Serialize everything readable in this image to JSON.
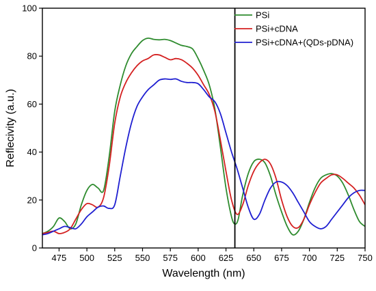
{
  "chart_data": {
    "type": "line",
    "title": "",
    "xlabel": "Wavelength (nm)",
    "ylabel": "Reflecivity (a.u.)",
    "xlim": [
      460,
      750
    ],
    "ylim": [
      0,
      100
    ],
    "x_ticks": [
      475,
      500,
      525,
      550,
      575,
      600,
      625,
      650,
      675,
      700,
      725,
      750
    ],
    "y_ticks": [
      0,
      20,
      40,
      60,
      80,
      100
    ],
    "grid": false,
    "legend_position": "top-right",
    "vertical_marker_x": 633,
    "series": [
      {
        "name": "PSi",
        "color": "#2e8b2e",
        "points": [
          [
            460,
            6
          ],
          [
            465,
            7
          ],
          [
            470,
            9
          ],
          [
            475,
            12.5
          ],
          [
            480,
            11
          ],
          [
            485,
            8
          ],
          [
            490,
            10
          ],
          [
            495,
            18
          ],
          [
            500,
            24
          ],
          [
            505,
            26.5
          ],
          [
            510,
            25
          ],
          [
            515,
            24
          ],
          [
            520,
            38
          ],
          [
            525,
            57
          ],
          [
            530,
            68
          ],
          [
            535,
            76
          ],
          [
            540,
            81
          ],
          [
            545,
            84
          ],
          [
            550,
            86.5
          ],
          [
            555,
            87.5
          ],
          [
            560,
            87
          ],
          [
            565,
            86.8
          ],
          [
            570,
            87
          ],
          [
            575,
            86.5
          ],
          [
            580,
            85.5
          ],
          [
            585,
            84.5
          ],
          [
            590,
            84
          ],
          [
            595,
            83
          ],
          [
            600,
            79
          ],
          [
            605,
            74
          ],
          [
            610,
            68
          ],
          [
            615,
            58
          ],
          [
            620,
            42
          ],
          [
            625,
            25
          ],
          [
            630,
            13
          ],
          [
            633,
            10
          ],
          [
            636,
            12
          ],
          [
            640,
            22
          ],
          [
            645,
            31
          ],
          [
            650,
            36
          ],
          [
            655,
            37
          ],
          [
            660,
            35.5
          ],
          [
            665,
            30
          ],
          [
            670,
            22
          ],
          [
            675,
            15
          ],
          [
            680,
            9
          ],
          [
            685,
            5.5
          ],
          [
            690,
            7
          ],
          [
            695,
            12
          ],
          [
            700,
            19
          ],
          [
            705,
            25
          ],
          [
            710,
            29
          ],
          [
            715,
            30.5
          ],
          [
            720,
            31
          ],
          [
            725,
            30
          ],
          [
            730,
            27
          ],
          [
            735,
            22
          ],
          [
            740,
            16
          ],
          [
            745,
            11
          ],
          [
            750,
            9
          ]
        ]
      },
      {
        "name": "PSi+cDNA",
        "color": "#d42020",
        "points": [
          [
            460,
            6
          ],
          [
            465,
            6.5
          ],
          [
            470,
            7
          ],
          [
            475,
            6
          ],
          [
            480,
            6.5
          ],
          [
            485,
            8
          ],
          [
            490,
            12
          ],
          [
            495,
            16
          ],
          [
            500,
            18.5
          ],
          [
            505,
            18
          ],
          [
            510,
            17
          ],
          [
            515,
            21
          ],
          [
            520,
            34
          ],
          [
            525,
            52
          ],
          [
            530,
            63
          ],
          [
            535,
            69
          ],
          [
            540,
            73
          ],
          [
            545,
            76
          ],
          [
            550,
            78
          ],
          [
            555,
            79
          ],
          [
            560,
            80.5
          ],
          [
            565,
            80.5
          ],
          [
            570,
            79.5
          ],
          [
            575,
            78.5
          ],
          [
            580,
            79
          ],
          [
            585,
            78.5
          ],
          [
            590,
            77
          ],
          [
            595,
            75
          ],
          [
            600,
            72
          ],
          [
            605,
            68
          ],
          [
            610,
            64
          ],
          [
            615,
            57
          ],
          [
            620,
            45
          ],
          [
            625,
            32
          ],
          [
            630,
            20
          ],
          [
            635,
            14
          ],
          [
            640,
            18
          ],
          [
            645,
            26
          ],
          [
            650,
            32
          ],
          [
            655,
            35.5
          ],
          [
            660,
            37
          ],
          [
            665,
            35
          ],
          [
            670,
            29
          ],
          [
            675,
            20
          ],
          [
            680,
            13
          ],
          [
            685,
            9
          ],
          [
            690,
            8.5
          ],
          [
            695,
            12
          ],
          [
            700,
            18
          ],
          [
            705,
            23
          ],
          [
            710,
            27
          ],
          [
            715,
            29
          ],
          [
            720,
            30.5
          ],
          [
            725,
            30.5
          ],
          [
            730,
            29
          ],
          [
            735,
            27
          ],
          [
            740,
            25
          ],
          [
            745,
            22
          ],
          [
            750,
            18
          ]
        ]
      },
      {
        "name": "PSi+cDNA+(QDs-pDNA)",
        "color": "#1f1fd1",
        "points": [
          [
            460,
            5.5
          ],
          [
            465,
            6
          ],
          [
            470,
            7
          ],
          [
            475,
            8
          ],
          [
            480,
            9
          ],
          [
            485,
            8.5
          ],
          [
            490,
            8
          ],
          [
            495,
            10
          ],
          [
            500,
            13
          ],
          [
            505,
            15
          ],
          [
            510,
            17
          ],
          [
            515,
            17.5
          ],
          [
            520,
            16.5
          ],
          [
            525,
            18
          ],
          [
            530,
            30
          ],
          [
            535,
            42
          ],
          [
            540,
            52
          ],
          [
            545,
            59
          ],
          [
            550,
            63
          ],
          [
            555,
            66
          ],
          [
            560,
            68
          ],
          [
            565,
            70
          ],
          [
            570,
            70.5
          ],
          [
            575,
            70.3
          ],
          [
            580,
            70.5
          ],
          [
            585,
            69.5
          ],
          [
            590,
            69
          ],
          [
            595,
            69
          ],
          [
            600,
            68.5
          ],
          [
            605,
            66
          ],
          [
            610,
            63
          ],
          [
            615,
            61
          ],
          [
            620,
            56
          ],
          [
            625,
            48
          ],
          [
            630,
            40
          ],
          [
            635,
            33
          ],
          [
            640,
            25
          ],
          [
            645,
            17
          ],
          [
            650,
            12
          ],
          [
            655,
            14
          ],
          [
            660,
            20
          ],
          [
            665,
            25
          ],
          [
            670,
            27.5
          ],
          [
            675,
            27.5
          ],
          [
            680,
            26
          ],
          [
            685,
            23
          ],
          [
            690,
            19
          ],
          [
            695,
            15
          ],
          [
            700,
            11
          ],
          [
            705,
            9
          ],
          [
            710,
            8
          ],
          [
            715,
            9
          ],
          [
            720,
            12
          ],
          [
            725,
            15
          ],
          [
            730,
            18
          ],
          [
            735,
            21
          ],
          [
            740,
            23
          ],
          [
            745,
            24
          ],
          [
            750,
            24
          ]
        ]
      }
    ]
  }
}
